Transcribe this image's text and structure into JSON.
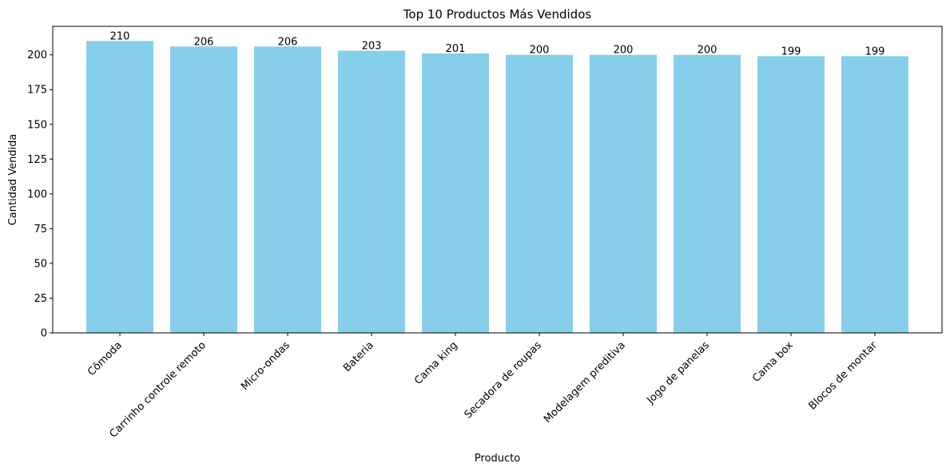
{
  "chart_data": {
    "type": "bar",
    "title": "Top 10 Productos Más Vendidos",
    "xlabel": "Producto",
    "ylabel": "Cantidad Vendida",
    "categories": [
      "Cômoda",
      "Carrinho controle remoto",
      "Micro-ondas",
      "Bateria",
      "Cama king",
      "Secadora de roupas",
      "Modelagem preditiva",
      "Jogo de panelas",
      "Cama box",
      "Blocos de montar"
    ],
    "values": [
      210,
      206,
      206,
      203,
      201,
      200,
      200,
      200,
      199,
      199
    ],
    "ylim": [
      0,
      220.5
    ],
    "yticks": [
      0,
      25,
      50,
      75,
      100,
      125,
      150,
      175,
      200
    ],
    "grid": false,
    "bar_color": "#87CEEB",
    "show_value_labels": true
  }
}
